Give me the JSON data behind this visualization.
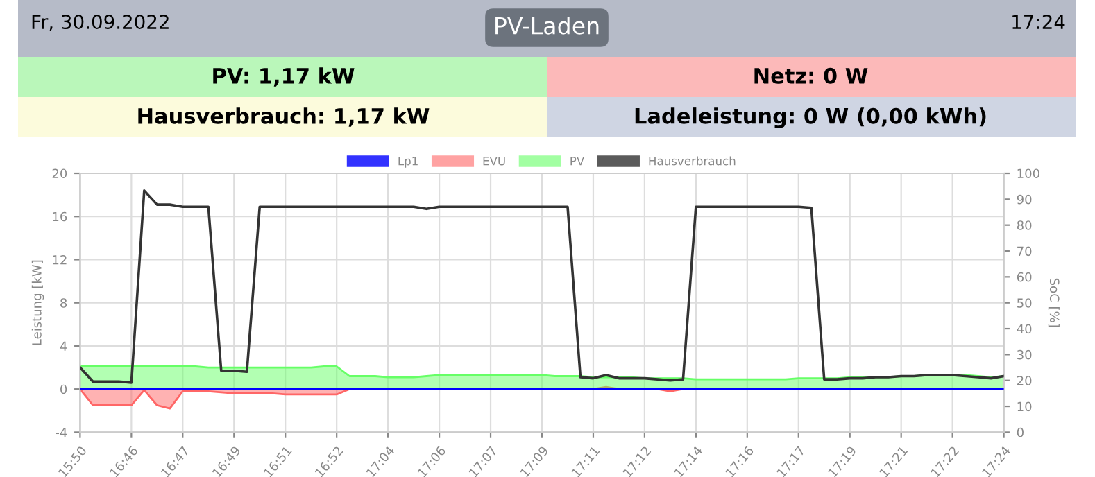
{
  "chart_data": [
    {
      "type": "other",
      "annotations": [
        "Fr, 30.09.2022",
        "PV-Laden",
        "17:24",
        "PV: 1,17 kW",
        "Netz: 0 W",
        "Hausverbrauch: 1,17 kW",
        "Ladeleistung: 0 W (0,00 kWh)"
      ]
    },
    {
      "type": "line",
      "ylabel": "Leistung [kW]",
      "y2label": "SoC [%]",
      "categories": [
        "15:50",
        null,
        null,
        null,
        "16:46",
        null,
        null,
        null,
        "16:47",
        null,
        null,
        null,
        "16:49",
        null,
        null,
        null,
        "16:51",
        null,
        null,
        null,
        "16:52",
        null,
        null,
        null,
        "17:04",
        null,
        null,
        null,
        "17:06",
        null,
        null,
        null,
        "17:07",
        null,
        null,
        null,
        "17:09",
        null,
        null,
        null,
        "17:11",
        null,
        null,
        null,
        "17:12",
        null,
        null,
        null,
        "17:14",
        null,
        null,
        null,
        "17:16",
        null,
        null,
        null,
        "17:17",
        null,
        null,
        null,
        "17:19",
        null,
        null,
        null,
        "17:21",
        null,
        null,
        null,
        "17:22",
        null,
        null,
        null,
        "17:24"
      ],
      "ylim": [
        -4,
        20
      ],
      "yticks": [
        -4,
        0,
        4,
        8,
        12,
        16,
        20
      ],
      "y2lim": [
        0,
        100
      ],
      "y2ticks": [
        0,
        10,
        20,
        30,
        40,
        50,
        60,
        70,
        80,
        90,
        100
      ],
      "grid": true,
      "legend": "top",
      "line_style": "solid",
      "series": [
        {
          "name": "Lp1",
          "type": "line",
          "color": "#0000ff",
          "values": [
            0,
            0,
            0,
            0,
            0,
            0,
            0,
            0,
            0,
            0,
            0,
            0,
            0,
            0,
            0,
            0,
            0,
            0,
            0,
            0,
            0,
            0,
            0,
            0,
            0,
            0,
            0,
            0,
            0,
            0,
            0,
            0,
            0,
            0,
            0,
            0,
            0,
            0,
            0,
            0,
            0,
            0,
            0,
            0,
            0,
            0,
            0,
            0,
            0,
            0,
            0,
            0,
            0,
            0,
            0,
            0,
            0,
            0,
            0,
            0,
            0,
            0,
            0,
            0,
            0,
            0,
            0,
            0,
            0,
            0,
            0,
            0,
            0
          ]
        },
        {
          "name": "EVU",
          "type": "area",
          "color": "#ff6666",
          "values": [
            0,
            -1.5,
            -1.5,
            -1.5,
            -1.5,
            -0.1,
            -1.5,
            -1.8,
            -0.2,
            -0.2,
            -0.2,
            -0.3,
            -0.4,
            -0.4,
            -0.4,
            -0.4,
            -0.5,
            -0.5,
            -0.5,
            -0.5,
            -0.5,
            0,
            0,
            0,
            0,
            0,
            0,
            0,
            0,
            0,
            0,
            0,
            0,
            0,
            0,
            0,
            0,
            0,
            0,
            0,
            0,
            0.2,
            0,
            0,
            0,
            0,
            -0.2,
            0,
            0,
            0,
            0,
            0,
            0,
            0,
            0,
            0,
            0,
            0,
            0,
            0,
            0,
            0,
            0,
            0,
            0,
            0,
            0,
            0,
            0,
            0,
            0,
            0,
            0
          ]
        },
        {
          "name": "PV",
          "type": "area",
          "color": "#66ff66",
          "values": [
            2.1,
            2.1,
            2.1,
            2.1,
            2.1,
            2.1,
            2.1,
            2.1,
            2.1,
            2.1,
            2.0,
            2.0,
            2.0,
            2.0,
            2.0,
            2.0,
            2.0,
            2.0,
            2.0,
            2.1,
            2.1,
            1.2,
            1.2,
            1.2,
            1.1,
            1.1,
            1.1,
            1.2,
            1.3,
            1.3,
            1.3,
            1.3,
            1.3,
            1.3,
            1.3,
            1.3,
            1.3,
            1.2,
            1.2,
            1.2,
            1.1,
            1.1,
            1.1,
            1.1,
            1.0,
            1.0,
            1.0,
            1.0,
            0.9,
            0.9,
            0.9,
            0.9,
            0.9,
            0.9,
            0.9,
            0.9,
            1.0,
            1.0,
            1.0,
            1.0,
            1.1,
            1.1,
            1.1,
            1.1,
            1.2,
            1.2,
            1.3,
            1.3,
            1.3,
            1.3,
            1.2,
            1.1,
            1.2
          ]
        },
        {
          "name": "Hausverbrauch",
          "type": "line",
          "color": "#333333",
          "values": [
            2.0,
            0.7,
            0.7,
            0.7,
            0.6,
            18.4,
            17.1,
            17.1,
            16.9,
            16.9,
            16.9,
            1.7,
            1.7,
            1.6,
            16.9,
            16.9,
            16.9,
            16.9,
            16.9,
            16.9,
            16.9,
            16.9,
            16.9,
            16.9,
            16.9,
            16.9,
            16.9,
            16.7,
            16.9,
            16.9,
            16.9,
            16.9,
            16.9,
            16.9,
            16.9,
            16.9,
            16.9,
            16.9,
            16.9,
            1.1,
            1.0,
            1.3,
            1.0,
            1.0,
            1.0,
            0.9,
            0.8,
            0.9,
            16.9,
            16.9,
            16.9,
            16.9,
            16.9,
            16.9,
            16.9,
            16.9,
            16.9,
            16.8,
            0.9,
            0.9,
            1.0,
            1.0,
            1.1,
            1.1,
            1.2,
            1.2,
            1.3,
            1.3,
            1.3,
            1.2,
            1.1,
            1.0,
            1.2
          ]
        }
      ]
    }
  ]
}
